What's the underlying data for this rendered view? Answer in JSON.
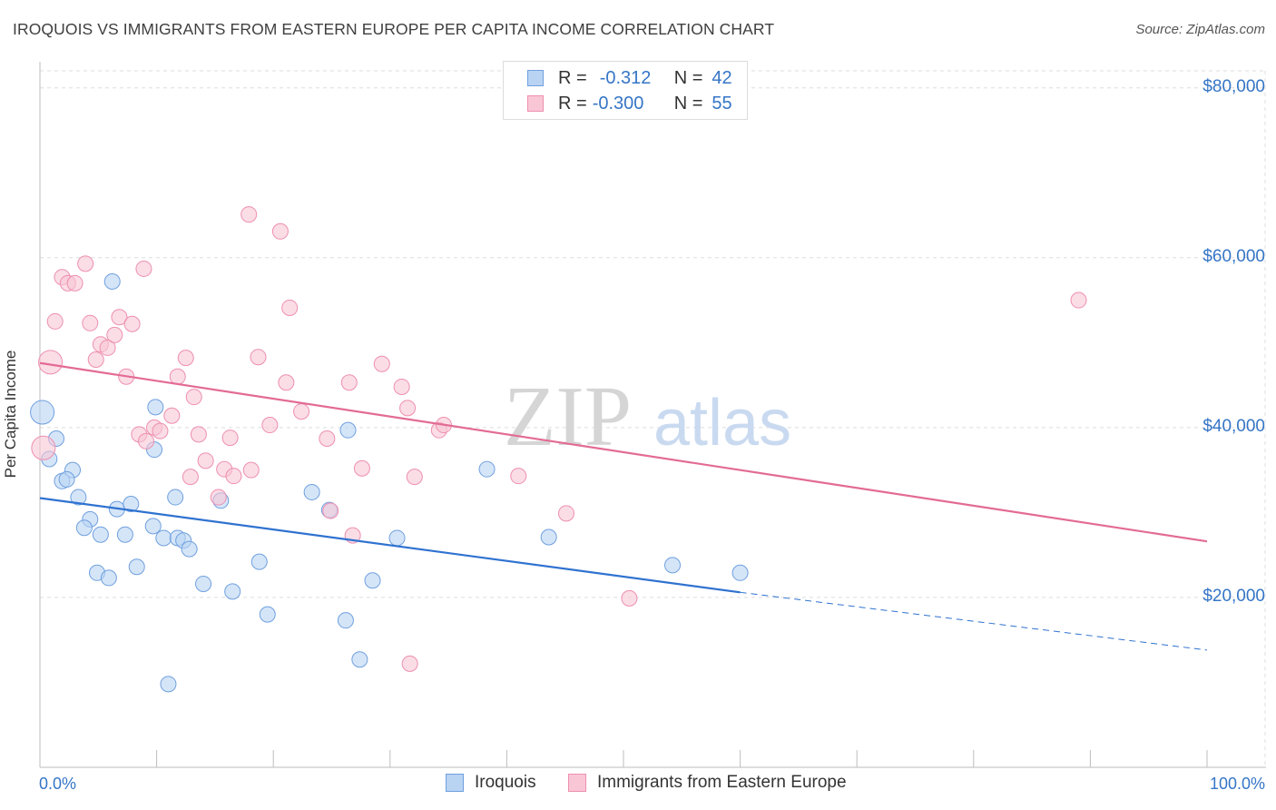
{
  "title": "IROQUOIS VS IMMIGRANTS FROM EASTERN EUROPE PER CAPITA INCOME CORRELATION CHART",
  "source": "Source: ZipAtlas.com",
  "legend_top": {
    "rows": [
      {
        "r_label": "R =",
        "r_value": "-0.312",
        "n_label": "N =",
        "n_value": "42"
      },
      {
        "r_label": "R =",
        "r_value": "-0.300",
        "n_label": "N =",
        "n_value": "55"
      }
    ]
  },
  "colors": {
    "iroquois_fill": "#b9d3f3",
    "iroquois_stroke": "#6fa0df",
    "iroquois_line": "#2f72d0",
    "immigrants_fill": "#f9c6d6",
    "immigrants_stroke": "#ee8fb0",
    "immigrants_line": "#e36b95",
    "tick_text": "#3575c6",
    "grid": "#dedede"
  },
  "chart_data": {
    "type": "scatter",
    "title": "IROQUOIS VS IMMIGRANTS FROM EASTERN EUROPE PER CAPITA INCOME CORRELATION CHART",
    "ylabel": "Per Capita Income",
    "xlabel": "",
    "xlim": [
      0,
      100
    ],
    "ylim": [
      0,
      82000
    ],
    "x_tick_labels": [
      "0.0%",
      "100.0%"
    ],
    "y_ticks": [
      20000,
      40000,
      60000,
      80000
    ],
    "y_tick_labels": [
      "$20,000",
      "$40,000",
      "$60,000",
      "$80,000"
    ],
    "grid": true,
    "legend_position": "bottom",
    "watermark": "ZIPatlas",
    "series": [
      {
        "name": "Iroquois",
        "r": -0.312,
        "n": 42,
        "trend": {
          "x0": 0,
          "y0": 31700,
          "x1": 60,
          "y1": 20600,
          "dash_to_x": 100,
          "dash_to_y": 13800
        },
        "points": [
          [
            0.2,
            41800
          ],
          [
            0.8,
            36300
          ],
          [
            1.4,
            38700
          ],
          [
            2.8,
            35000
          ],
          [
            1.9,
            33700
          ],
          [
            2.3,
            33900
          ],
          [
            3.3,
            31800
          ],
          [
            4.3,
            29200
          ],
          [
            3.8,
            28200
          ],
          [
            5.2,
            27400
          ],
          [
            6.6,
            30400
          ],
          [
            7.8,
            31000
          ],
          [
            7.3,
            27400
          ],
          [
            9.7,
            28400
          ],
          [
            10.6,
            27000
          ],
          [
            11.8,
            27000
          ],
          [
            12.3,
            26700
          ],
          [
            12.8,
            25700
          ],
          [
            4.9,
            22900
          ],
          [
            5.9,
            22300
          ],
          [
            8.3,
            23600
          ],
          [
            9.8,
            37400
          ],
          [
            9.9,
            42400
          ],
          [
            11.6,
            31800
          ],
          [
            14.0,
            21600
          ],
          [
            15.5,
            31400
          ],
          [
            16.5,
            20700
          ],
          [
            18.8,
            24200
          ],
          [
            19.5,
            18000
          ],
          [
            23.3,
            32400
          ],
          [
            24.8,
            30300
          ],
          [
            26.2,
            17300
          ],
          [
            26.4,
            39700
          ],
          [
            27.4,
            12700
          ],
          [
            28.5,
            22000
          ],
          [
            30.6,
            27000
          ],
          [
            38.3,
            35100
          ],
          [
            43.6,
            27100
          ],
          [
            54.2,
            23800
          ],
          [
            60.0,
            22900
          ],
          [
            11.0,
            9800
          ],
          [
            6.2,
            57200
          ]
        ]
      },
      {
        "name": "Immigrants from Eastern Europe",
        "r": -0.3,
        "n": 55,
        "trend": {
          "x0": 0,
          "y0": 47600,
          "x1": 100,
          "y1": 26600
        },
        "points": [
          [
            0.3,
            37600
          ],
          [
            0.9,
            47700
          ],
          [
            1.3,
            52500
          ],
          [
            1.9,
            57700
          ],
          [
            2.4,
            57000
          ],
          [
            3.0,
            57000
          ],
          [
            3.9,
            59300
          ],
          [
            4.3,
            52300
          ],
          [
            4.8,
            48000
          ],
          [
            5.2,
            49800
          ],
          [
            5.8,
            49400
          ],
          [
            6.4,
            50900
          ],
          [
            6.8,
            53000
          ],
          [
            7.4,
            46000
          ],
          [
            7.9,
            52200
          ],
          [
            8.5,
            39200
          ],
          [
            8.9,
            58700
          ],
          [
            9.1,
            38400
          ],
          [
            9.8,
            40000
          ],
          [
            10.3,
            39600
          ],
          [
            11.3,
            41400
          ],
          [
            11.8,
            46000
          ],
          [
            12.5,
            48200
          ],
          [
            12.9,
            34200
          ],
          [
            13.2,
            43600
          ],
          [
            13.6,
            39200
          ],
          [
            14.2,
            36100
          ],
          [
            15.3,
            31800
          ],
          [
            15.8,
            35100
          ],
          [
            16.3,
            38800
          ],
          [
            16.6,
            34300
          ],
          [
            18.1,
            35000
          ],
          [
            17.9,
            65100
          ],
          [
            18.7,
            48300
          ],
          [
            19.7,
            40300
          ],
          [
            20.6,
            63100
          ],
          [
            21.1,
            45300
          ],
          [
            21.4,
            54100
          ],
          [
            22.4,
            41900
          ],
          [
            24.6,
            38700
          ],
          [
            24.9,
            30200
          ],
          [
            26.5,
            45300
          ],
          [
            26.8,
            27300
          ],
          [
            27.6,
            35200
          ],
          [
            29.3,
            47500
          ],
          [
            31.0,
            44800
          ],
          [
            31.5,
            42300
          ],
          [
            32.1,
            34200
          ],
          [
            31.7,
            12200
          ],
          [
            34.2,
            39700
          ],
          [
            34.6,
            40300
          ],
          [
            41.0,
            34300
          ],
          [
            45.1,
            29900
          ],
          [
            50.5,
            19900
          ],
          [
            89.0,
            55000
          ]
        ]
      }
    ]
  },
  "legend_bottom": [
    {
      "label": "Iroquois"
    },
    {
      "label": "Immigrants from Eastern Europe"
    }
  ]
}
